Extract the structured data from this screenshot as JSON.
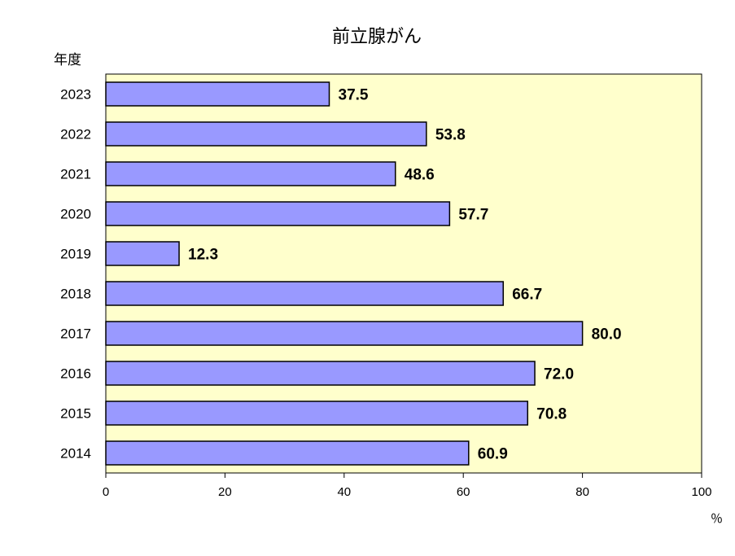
{
  "chart_data": {
    "type": "bar",
    "orientation": "horizontal",
    "title": "前立腺がん",
    "ylabel": "年度",
    "xlabel": "",
    "unit": "％",
    "categories": [
      "2023",
      "2022",
      "2021",
      "2020",
      "2019",
      "2018",
      "2017",
      "2016",
      "2015",
      "2014"
    ],
    "values": [
      37.5,
      53.8,
      48.6,
      57.7,
      12.3,
      66.7,
      80.0,
      72.0,
      70.8,
      60.9
    ],
    "value_labels": [
      "37.5",
      "53.8",
      "48.6",
      "57.7",
      "12.3",
      "66.7",
      "80.0",
      "72.0",
      "70.8",
      "60.9"
    ],
    "xlim": [
      0,
      100
    ],
    "xticks": [
      "0",
      "20",
      "40",
      "60",
      "80",
      "100"
    ],
    "grid": false,
    "colors": {
      "plot_background": "#ffffcc",
      "bar_fill": "#9999ff",
      "bar_stroke": "#000000"
    }
  }
}
